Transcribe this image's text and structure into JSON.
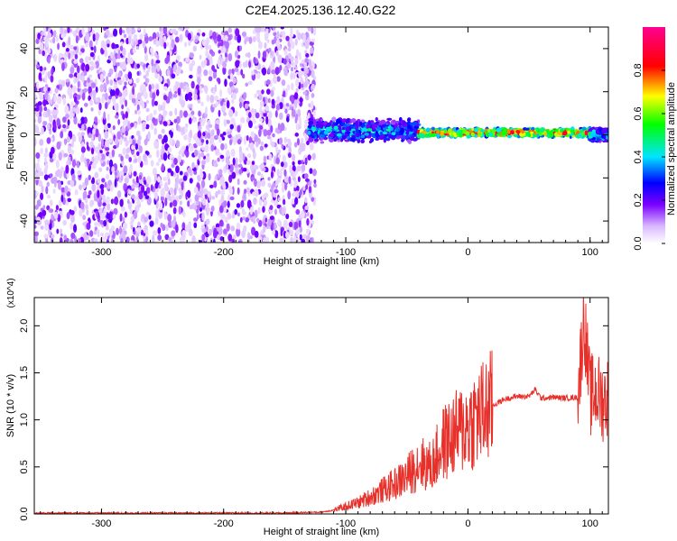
{
  "title": "C2E4.2025.136.12.40.G22",
  "colorbar": {
    "label": "Normalized spectral amplitude",
    "ticks": [
      "0.0",
      "0.2",
      "0.4",
      "0.6",
      "0.8"
    ],
    "range": [
      0,
      1
    ],
    "colormap": "rainbow (white-violet-blue-cyan-green-yellow-red-magenta)"
  },
  "chart_data": [
    {
      "type": "heatmap",
      "panel": "spectrogram",
      "xlabel": "Height of straight line (km)",
      "ylabel": "Frequency (Hz)",
      "xlim": [
        -355,
        115
      ],
      "ylim": [
        -50,
        50
      ],
      "xticks": [
        "-300",
        "-200",
        "-100",
        "0",
        "100"
      ],
      "yticks": [
        "-40",
        "-20",
        "0",
        "20",
        "40"
      ],
      "description_of_values": [
        {
          "x_range": [
            -355,
            -125
          ],
          "freq_range": [
            -50,
            50
          ],
          "amplitude": "low, scattered noise (0.0–0.2)"
        },
        {
          "x_range": [
            -130,
            -40
          ],
          "freq_center": 2,
          "freq_halfwidth": 6,
          "amplitude": "0.2–0.5, broken signal band"
        },
        {
          "x_range": [
            -40,
            100
          ],
          "freq_center": 1,
          "freq_halfwidth": 2,
          "amplitude": "0.6–1.0, narrow coherent signal"
        },
        {
          "x_range": [
            100,
            115
          ],
          "freq_center": 0,
          "freq_halfwidth": 3,
          "amplitude": "0.3–0.6"
        }
      ],
      "grid": false
    },
    {
      "type": "line",
      "panel": "snr",
      "xlabel": "Height of straight line (km)",
      "ylabel": "SNR (10 * v/v)",
      "y_multiplier": "(x10^4)",
      "xlim": [
        -355,
        115
      ],
      "ylim": [
        0,
        2.3
      ],
      "xticks": [
        "-300",
        "-200",
        "-100",
        "0",
        "100"
      ],
      "yticks": [
        "0.0",
        "0.5",
        "1.0",
        "1.5",
        "2.0"
      ],
      "series": [
        {
          "color": "#e8302a",
          "x": [
            -355,
            -300,
            -250,
            -200,
            -150,
            -120,
            -110,
            -100,
            -90,
            -80,
            -70,
            -60,
            -50,
            -40,
            -30,
            -20,
            -10,
            0,
            10,
            20,
            30,
            40,
            50,
            55,
            60,
            70,
            80,
            90,
            95,
            100,
            105,
            110,
            115
          ],
          "y": [
            0.01,
            0.01,
            0.01,
            0.01,
            0.01,
            0.02,
            0.04,
            0.08,
            0.12,
            0.18,
            0.25,
            0.32,
            0.4,
            0.55,
            0.5,
            0.75,
            0.85,
            0.95,
            1.05,
            1.15,
            1.22,
            1.25,
            1.25,
            1.32,
            1.23,
            1.24,
            1.23,
            1.24,
            2.1,
            1.25,
            1.3,
            1.2,
            1.25
          ]
        }
      ],
      "grid": false
    }
  ]
}
